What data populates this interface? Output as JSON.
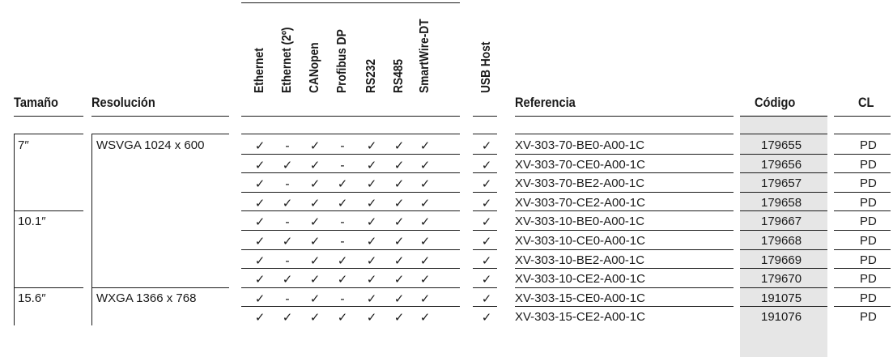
{
  "headers": {
    "size": "Tamaño",
    "resolution": "Resolución",
    "interfaces": [
      "Ethernet",
      "Ethernet (2º)",
      "CANopen",
      "Profibus DP",
      "RS232",
      "RS485",
      "SmartWire-DT"
    ],
    "usb_host": "USB Host",
    "reference": "Referencia",
    "code": "Código",
    "cl": "CL"
  },
  "size_groups": [
    {
      "label": "7″",
      "first_row": 0,
      "row_count": 4
    },
    {
      "label": "10.1″",
      "first_row": 4,
      "row_count": 4
    },
    {
      "label": "15.6″",
      "first_row": 8,
      "row_count": 2
    }
  ],
  "resolution_groups": [
    {
      "label": "WSVGA 1024 x 600",
      "first_row": 0,
      "row_count": 8
    },
    {
      "label": "WXGA 1366 x 768",
      "first_row": 8,
      "row_count": 2
    }
  ],
  "rows": [
    {
      "marks": [
        "✓",
        "-",
        "✓",
        "-",
        "✓",
        "✓",
        "✓"
      ],
      "usb": "✓",
      "reference": "XV-303-70-BE0-A00-1C",
      "code": "179655",
      "cl": "PD"
    },
    {
      "marks": [
        "✓",
        "✓",
        "✓",
        "-",
        "✓",
        "✓",
        "✓"
      ],
      "usb": "✓",
      "reference": "XV-303-70-CE0-A00-1C",
      "code": "179656",
      "cl": "PD"
    },
    {
      "marks": [
        "✓",
        "-",
        "✓",
        "✓",
        "✓",
        "✓",
        "✓"
      ],
      "usb": "✓",
      "reference": "XV-303-70-BE2-A00-1C",
      "code": "179657",
      "cl": "PD"
    },
    {
      "marks": [
        "✓",
        "✓",
        "✓",
        "✓",
        "✓",
        "✓",
        "✓"
      ],
      "usb": "✓",
      "reference": "XV-303-70-CE2-A00-1C",
      "code": "179658",
      "cl": "PD"
    },
    {
      "marks": [
        "✓",
        "-",
        "✓",
        "-",
        "✓",
        "✓",
        "✓"
      ],
      "usb": "✓",
      "reference": "XV-303-10-BE0-A00-1C",
      "code": "179667",
      "cl": "PD"
    },
    {
      "marks": [
        "✓",
        "✓",
        "✓",
        "-",
        "✓",
        "✓",
        "✓"
      ],
      "usb": "✓",
      "reference": "XV-303-10-CE0-A00-1C",
      "code": "179668",
      "cl": "PD"
    },
    {
      "marks": [
        "✓",
        "-",
        "✓",
        "✓",
        "✓",
        "✓",
        "✓"
      ],
      "usb": "✓",
      "reference": "XV-303-10-BE2-A00-1C",
      "code": "179669",
      "cl": "PD"
    },
    {
      "marks": [
        "✓",
        "✓",
        "✓",
        "✓",
        "✓",
        "✓",
        "✓"
      ],
      "usb": "✓",
      "reference": "XV-303-10-CE2-A00-1C",
      "code": "179670",
      "cl": "PD"
    },
    {
      "marks": [
        "✓",
        "-",
        "✓",
        "-",
        "✓",
        "✓",
        "✓"
      ],
      "usb": "✓",
      "reference": "XV-303-15-CE0-A00-1C",
      "code": "191075",
      "cl": "PD"
    },
    {
      "marks": [
        "✓",
        "✓",
        "✓",
        "✓",
        "✓",
        "✓",
        "✓"
      ],
      "usb": "✓",
      "reference": "XV-303-15-CE2-A00-1C",
      "code": "191076",
      "cl": "PD"
    }
  ]
}
